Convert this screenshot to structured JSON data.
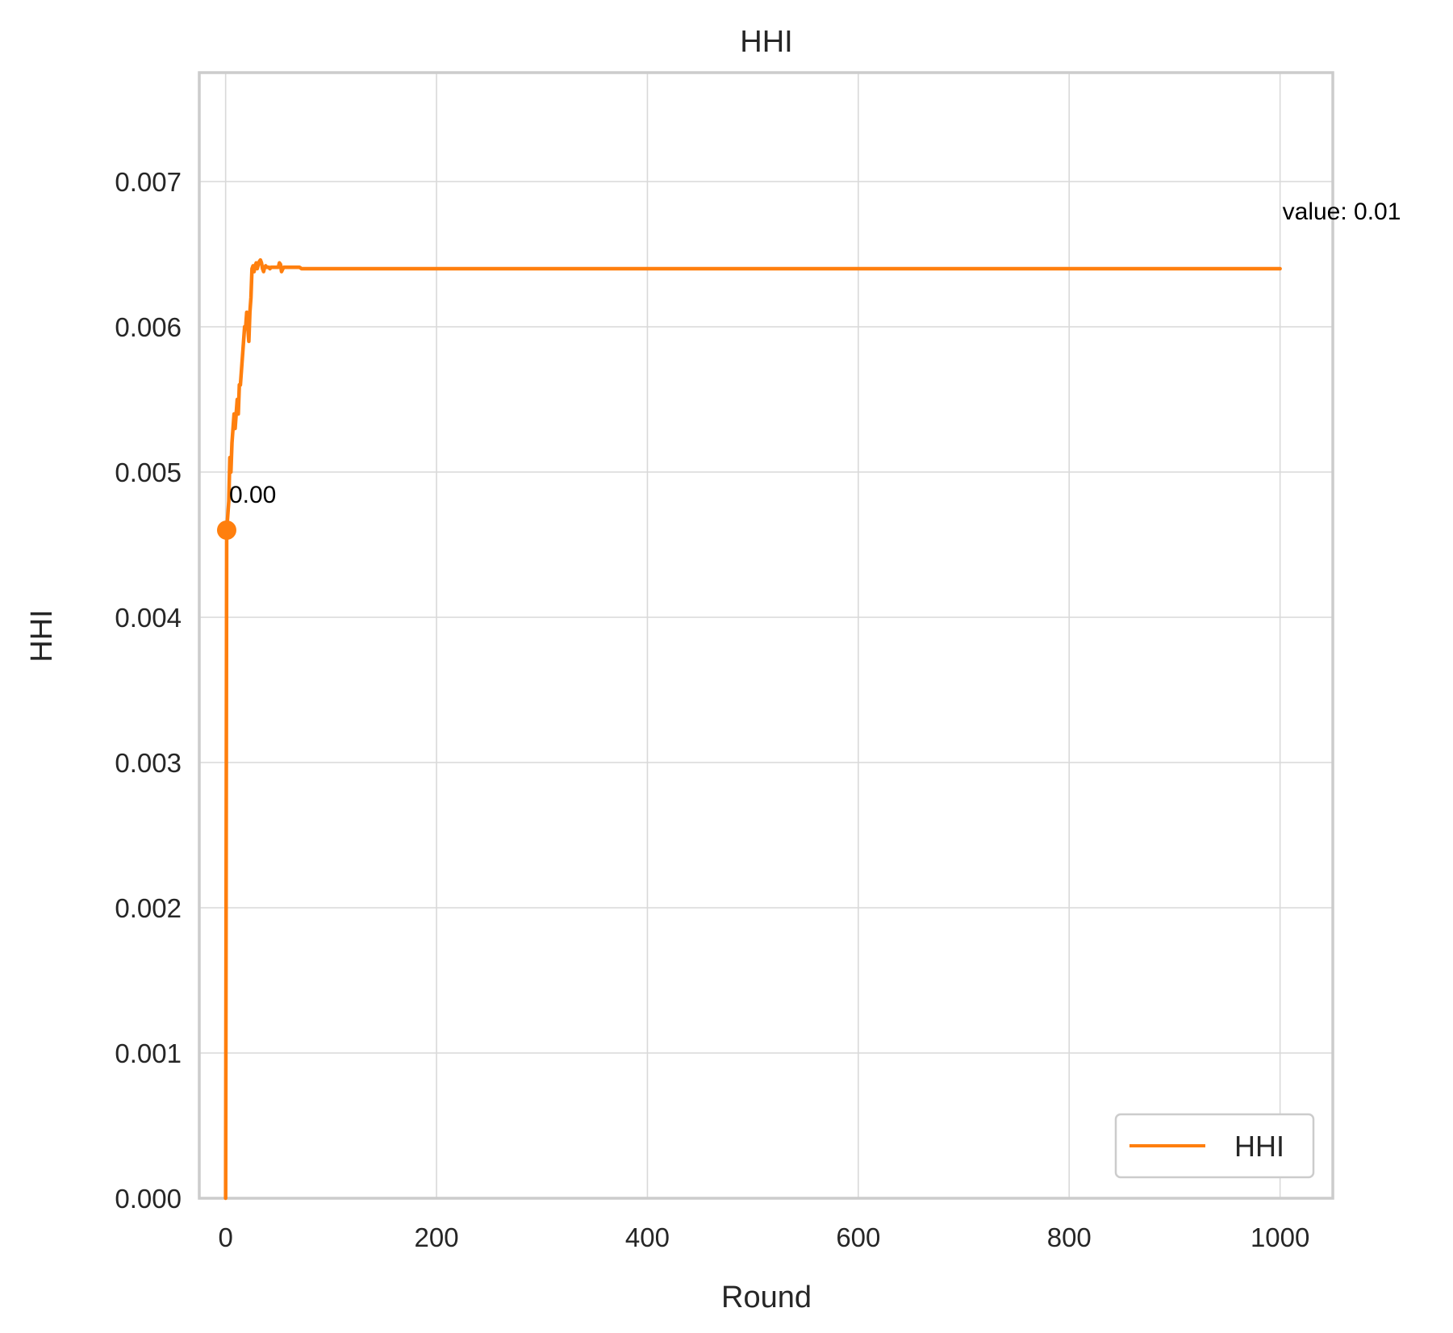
{
  "chart_data": {
    "type": "line",
    "title": "HHI",
    "xlabel": "Round",
    "ylabel": "HHI",
    "xlim": [
      -25,
      1050
    ],
    "ylim": [
      0,
      0.00775
    ],
    "xticks": [
      0,
      200,
      400,
      600,
      800,
      1000
    ],
    "xtick_labels": [
      "0",
      "200",
      "400",
      "600",
      "800",
      "1000"
    ],
    "yticks": [
      0,
      0.001,
      0.002,
      0.003,
      0.004,
      0.005,
      0.006,
      0.007
    ],
    "ytick_labels": [
      "0.000",
      "0.001",
      "0.002",
      "0.003",
      "0.004",
      "0.005",
      "0.006",
      "0.007"
    ],
    "grid": true,
    "legend": {
      "position": "lower-right",
      "entries": [
        "HHI"
      ]
    },
    "color": "#ff7f0e",
    "series": [
      {
        "name": "HHI",
        "x": [
          0,
          1,
          2,
          3,
          4,
          5,
          6,
          7,
          8,
          9,
          10,
          11,
          12,
          13,
          14,
          15,
          16,
          17,
          18,
          19,
          20,
          21,
          22,
          23,
          24,
          25,
          26,
          27,
          28,
          29,
          30,
          31,
          32,
          33,
          34,
          35,
          36,
          37,
          38,
          39,
          40,
          41,
          42,
          43,
          44,
          45,
          46,
          47,
          48,
          49,
          50,
          51,
          52,
          53,
          55,
          60,
          70,
          72,
          80,
          100,
          200,
          300,
          400,
          500,
          600,
          700,
          800,
          900,
          1000
        ],
        "values": [
          0.0,
          0.0046,
          0.0047,
          0.0048,
          0.0051,
          0.005,
          0.0052,
          0.0053,
          0.0054,
          0.0053,
          0.0054,
          0.0055,
          0.0054,
          0.0056,
          0.0056,
          0.0057,
          0.0058,
          0.0059,
          0.006,
          0.006,
          0.0061,
          0.006,
          0.0059,
          0.0061,
          0.0062,
          0.0064,
          0.00642,
          0.00638,
          0.00642,
          0.00644,
          0.0064,
          0.00643,
          0.00645,
          0.00646,
          0.00644,
          0.0064,
          0.00638,
          0.00641,
          0.00642,
          0.00641,
          0.00641,
          0.00641,
          0.0064,
          0.00641,
          0.00641,
          0.00641,
          0.00641,
          0.00641,
          0.00641,
          0.00641,
          0.00641,
          0.00644,
          0.00643,
          0.00638,
          0.00641,
          0.00641,
          0.00641,
          0.0064,
          0.0064,
          0.0064,
          0.0064,
          0.0064,
          0.0064,
          0.0064,
          0.0064,
          0.0064,
          0.0064,
          0.0064,
          0.0064
        ]
      }
    ],
    "markers": [
      {
        "x": 1,
        "y": 0.0046
      }
    ],
    "annotations": [
      {
        "text": "0.00",
        "x": 1,
        "y": 0.0046
      },
      {
        "text": "value: 0.01",
        "x": 1000,
        "y": 0.0064
      }
    ]
  }
}
